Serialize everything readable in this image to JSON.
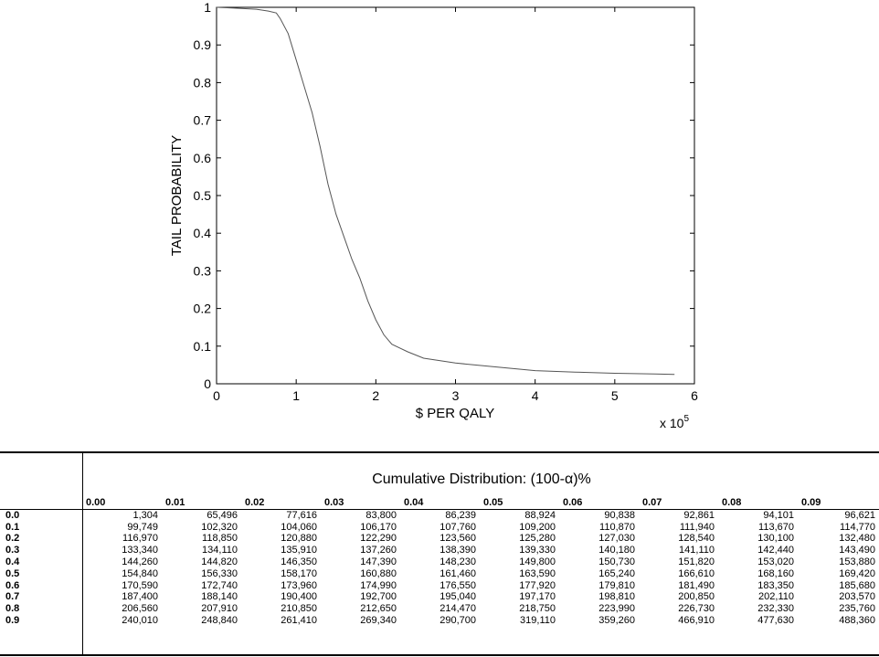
{
  "chart_data": {
    "type": "line",
    "xlabel": "$ PER QALY",
    "ylabel": "TAIL PROBABILITY",
    "x_multiplier_label": "x 10",
    "x_multiplier_exp": "5",
    "xlim": [
      0,
      6
    ],
    "ylim": [
      0,
      1
    ],
    "xticks": [
      "0",
      "1",
      "2",
      "3",
      "4",
      "5",
      "6"
    ],
    "yticks": [
      "0",
      "0.1",
      "0.2",
      "0.3",
      "0.4",
      "0.5",
      "0.6",
      "0.7",
      "0.8",
      "0.9",
      "1"
    ],
    "grid": false,
    "series": [
      {
        "x": [
          0.0,
          0.2,
          0.5,
          0.65,
          0.75,
          0.8,
          0.9,
          1.0,
          1.1,
          1.2,
          1.3,
          1.4,
          1.5,
          1.6,
          1.7,
          1.8,
          1.9,
          2.0,
          2.1,
          2.2,
          2.4,
          2.6,
          3.0,
          3.5,
          4.0,
          4.5,
          5.0,
          5.5,
          5.75
        ],
        "y": [
          1.0,
          0.998,
          0.995,
          0.99,
          0.985,
          0.97,
          0.93,
          0.86,
          0.79,
          0.72,
          0.63,
          0.53,
          0.45,
          0.39,
          0.33,
          0.28,
          0.22,
          0.17,
          0.13,
          0.105,
          0.085,
          0.068,
          0.055,
          0.045,
          0.035,
          0.031,
          0.028,
          0.026,
          0.025
        ]
      }
    ]
  },
  "table": {
    "caption_prefix": "Cumulative Distribution: (100-",
    "caption_alpha": "α",
    "caption_suffix": ")%",
    "columns": [
      "0.00",
      "0.01",
      "0.02",
      "0.03",
      "0.04",
      "0.05",
      "0.06",
      "0.07",
      "0.08",
      "0.09"
    ],
    "rows": [
      {
        "label": "0.0",
        "values": [
          "1,304",
          "65,496",
          "77,616",
          "83,800",
          "86,239",
          "88,924",
          "90,838",
          "92,861",
          "94,101",
          "96,621"
        ]
      },
      {
        "label": "0.1",
        "values": [
          "99,749",
          "102,320",
          "104,060",
          "106,170",
          "107,760",
          "109,200",
          "110,870",
          "111,940",
          "113,670",
          "114,770"
        ]
      },
      {
        "label": "0.2",
        "values": [
          "116,970",
          "118,850",
          "120,880",
          "122,290",
          "123,560",
          "125,280",
          "127,030",
          "128,540",
          "130,100",
          "132,480"
        ]
      },
      {
        "label": "0.3",
        "values": [
          "133,340",
          "134,110",
          "135,910",
          "137,260",
          "138,390",
          "139,330",
          "140,180",
          "141,110",
          "142,440",
          "143,490"
        ]
      },
      {
        "label": "0.4",
        "values": [
          "144,260",
          "144,820",
          "146,350",
          "147,390",
          "148,230",
          "149,800",
          "150,730",
          "151,820",
          "153,020",
          "153,880"
        ]
      },
      {
        "label": "0.5",
        "values": [
          "154,840",
          "156,330",
          "158,170",
          "160,880",
          "161,460",
          "163,590",
          "165,240",
          "166,610",
          "168,160",
          "169,420"
        ]
      },
      {
        "label": "0.6",
        "values": [
          "170,590",
          "172,740",
          "173,960",
          "174,990",
          "176,550",
          "177,920",
          "179,810",
          "181,490",
          "183,350",
          "185,680"
        ]
      },
      {
        "label": "0.7",
        "values": [
          "187,400",
          "188,140",
          "190,400",
          "192,700",
          "195,040",
          "197,170",
          "198,810",
          "200,850",
          "202,110",
          "203,570"
        ]
      },
      {
        "label": "0.8",
        "values": [
          "206,560",
          "207,910",
          "210,850",
          "212,650",
          "214,470",
          "218,750",
          "223,990",
          "226,730",
          "232,330",
          "235,760"
        ]
      },
      {
        "label": "0.9",
        "values": [
          "240,010",
          "248,840",
          "261,410",
          "269,340",
          "290,700",
          "319,110",
          "359,260",
          "466,910",
          "477,630",
          "488,360"
        ]
      }
    ]
  }
}
